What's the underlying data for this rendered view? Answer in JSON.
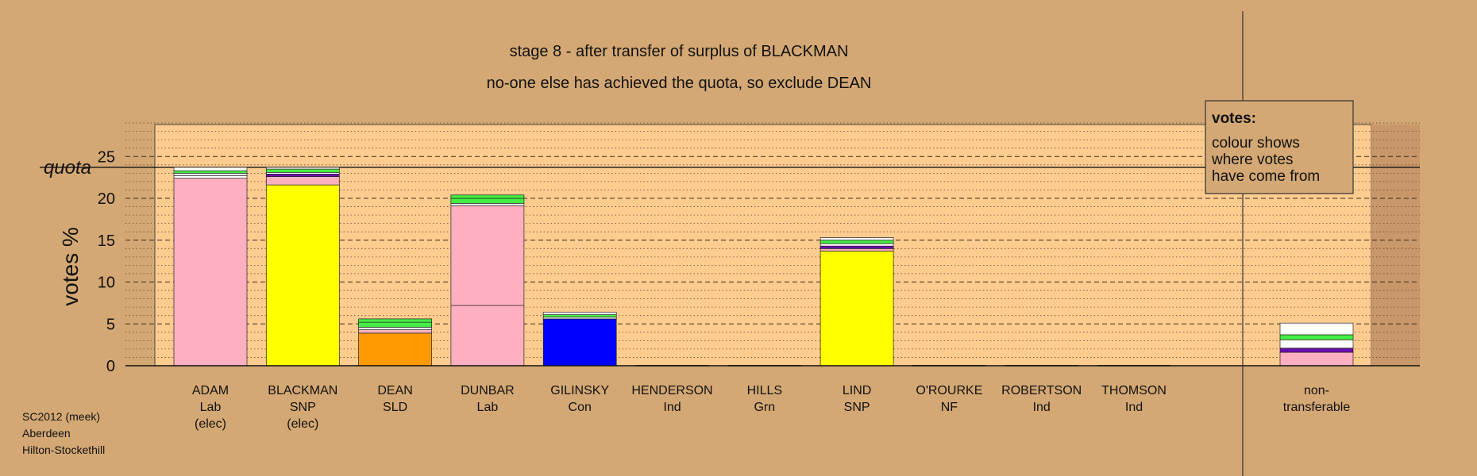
{
  "footer": {
    "line1": "SC2012 (meek)",
    "line2": "Aberdeen",
    "line3": "Hilton-Stockethill"
  },
  "chart_data": {
    "type": "bar",
    "stacked": true,
    "title": "stage 8 - after transfer of surplus of BLACKMAN",
    "subtitle": "no-one else has achieved the quota, so exclude DEAN",
    "ylabel": "votes %",
    "ylim": [
      0,
      29
    ],
    "yticks": [
      0,
      5,
      10,
      15,
      20,
      25
    ],
    "quota": {
      "label": "quota",
      "value": 23.7
    },
    "grid": true,
    "legend": {
      "title": "votes:",
      "lines": [
        "colour shows",
        "where votes",
        "have come from"
      ],
      "position": "top-right"
    },
    "colors": {
      "Lab": "#ffb0c0",
      "SNP": "#ffff00",
      "SLD": "#ff9900",
      "Con": "#0000ff",
      "Grn": "#44ee44",
      "Ind": "#ffffff",
      "NF": "#6a0dad"
    },
    "categories": [
      {
        "name": "ADAM",
        "party": "Lab",
        "note": "(elec)",
        "segments": [
          {
            "party": "Lab",
            "value": 22.4
          },
          {
            "party": "Ind",
            "value": 0.3
          },
          {
            "party": "Ind",
            "value": 0.3
          },
          {
            "party": "Grn",
            "value": 0.3
          },
          {
            "party": "Ind",
            "value": 0.4
          }
        ]
      },
      {
        "name": "BLACKMAN",
        "party": "SNP",
        "note": "(elec)",
        "segments": [
          {
            "party": "SNP",
            "value": 21.6
          },
          {
            "party": "Lab",
            "value": 1.0
          },
          {
            "party": "NF",
            "value": 0.3
          },
          {
            "party": "Ind",
            "value": 0.2
          },
          {
            "party": "Grn",
            "value": 0.4
          },
          {
            "party": "Ind",
            "value": 0.2
          }
        ]
      },
      {
        "name": "DEAN",
        "party": "SLD",
        "note": "",
        "segments": [
          {
            "party": "SLD",
            "value": 3.9
          },
          {
            "party": "Lab",
            "value": 0.4
          },
          {
            "party": "Ind",
            "value": 0.3
          },
          {
            "party": "Grn",
            "value": 0.6
          },
          {
            "party": "Grn",
            "value": 0.4
          }
        ]
      },
      {
        "name": "DUNBAR",
        "party": "Lab",
        "note": "",
        "segments": [
          {
            "party": "Lab",
            "value": 7.2
          },
          {
            "party": "Lab",
            "value": 11.9
          },
          {
            "party": "Ind",
            "value": 0.3
          },
          {
            "party": "Grn",
            "value": 0.6
          },
          {
            "party": "Grn",
            "value": 0.4
          }
        ]
      },
      {
        "name": "GILINSKY",
        "party": "Con",
        "note": "",
        "segments": [
          {
            "party": "Con",
            "value": 5.6
          },
          {
            "party": "Ind",
            "value": 0.2
          },
          {
            "party": "Grn",
            "value": 0.3
          },
          {
            "party": "Ind",
            "value": 0.3
          }
        ]
      },
      {
        "name": "HENDERSON",
        "party": "Ind",
        "note": "",
        "segments": [
          {
            "party": "Ind",
            "value": 0.05
          }
        ]
      },
      {
        "name": "HILLS",
        "party": "Grn",
        "note": "",
        "segments": [
          {
            "party": "Grn",
            "value": 0.05
          }
        ]
      },
      {
        "name": "LIND",
        "party": "SNP",
        "note": "",
        "segments": [
          {
            "party": "SNP",
            "value": 13.7
          },
          {
            "party": "Lab",
            "value": 0.3
          },
          {
            "party": "NF",
            "value": 0.3
          },
          {
            "party": "Ind",
            "value": 0.3
          },
          {
            "party": "Grn",
            "value": 0.4
          },
          {
            "party": "Ind",
            "value": 0.3
          }
        ]
      },
      {
        "name": "O'ROURKE",
        "party": "NF",
        "note": "",
        "segments": [
          {
            "party": "NF",
            "value": 0.05
          }
        ]
      },
      {
        "name": "ROBERTSON",
        "party": "Ind",
        "note": "",
        "segments": [
          {
            "party": "Ind",
            "value": 0.05
          }
        ]
      },
      {
        "name": "THOMSON",
        "party": "Ind",
        "note": "",
        "segments": [
          {
            "party": "Ind",
            "value": 0.05
          }
        ]
      }
    ],
    "nontransferable": {
      "label1": "non-",
      "label2": "transferable",
      "segments": [
        {
          "party": "Lab",
          "value": 1.6
        },
        {
          "party": "NF",
          "value": 0.5
        },
        {
          "party": "Ind",
          "value": 1.0
        },
        {
          "party": "Grn",
          "value": 0.6
        },
        {
          "party": "Ind",
          "value": 1.4
        }
      ]
    }
  }
}
